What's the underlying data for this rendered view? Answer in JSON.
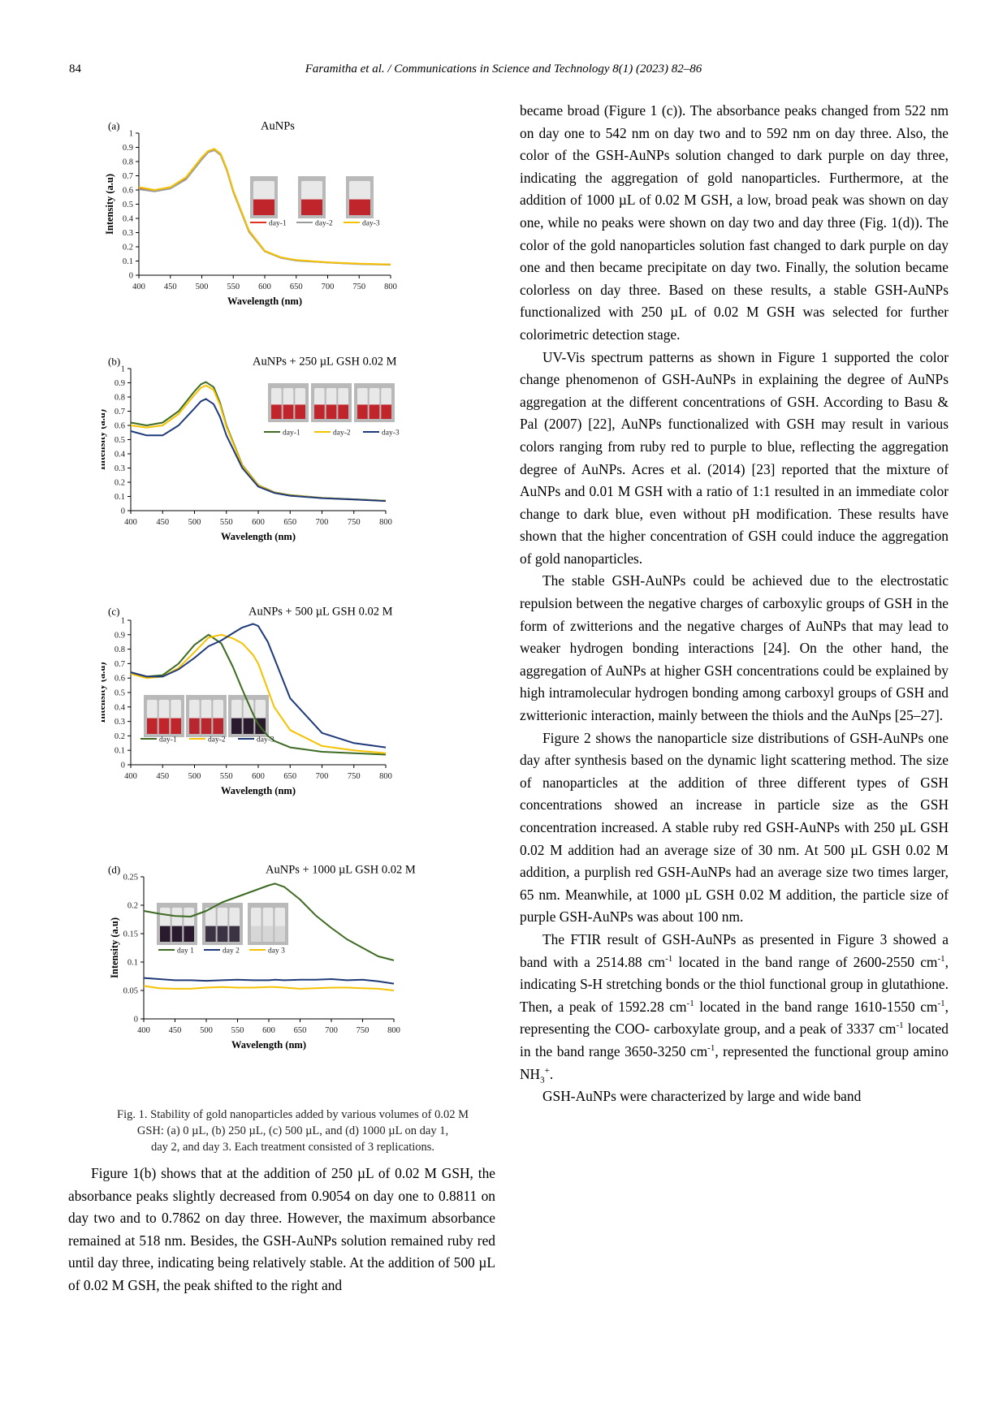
{
  "header": {
    "page_number": "84",
    "running_title": "Faramitha et al. / Communications in Science and Technology 8(1) (2023) 82–86"
  },
  "figure": {
    "caption_lines": [
      "Fig. 1. Stability of gold nanoparticles added by various volumes of 0.02 M",
      "GSH: (a) 0 µL, (b) 250 µL, (c) 500 µL, and (d) 1000 µL on day 1,",
      "day 2, and day 3. Each treatment consisted of 3 replications."
    ]
  },
  "chart_data": [
    {
      "type": "line",
      "panel_label": "(a)",
      "title": "AuNPs",
      "xlabel": "Wavelength (nm)",
      "ylabel": "Intensity (a.u)",
      "xlim": [
        400,
        800
      ],
      "ylim": [
        0,
        1
      ],
      "x_ticks": [
        "400",
        "450",
        "500",
        "550",
        "600",
        "650",
        "700",
        "750",
        "800"
      ],
      "y_ticks": [
        "0",
        "0.1",
        "0.2",
        "0.3",
        "0.4",
        "0.5",
        "0.6",
        "0.7",
        "0.8",
        "0.9",
        "1"
      ],
      "x": [
        400,
        425,
        450,
        475,
        500,
        510,
        520,
        530,
        540,
        550,
        575,
        600,
        625,
        650,
        700,
        750,
        800
      ],
      "series": [
        {
          "name": "day-1",
          "color": "#e0301e",
          "values": [
            0.61,
            0.595,
            0.615,
            0.68,
            0.82,
            0.87,
            0.885,
            0.85,
            0.74,
            0.59,
            0.31,
            0.17,
            0.125,
            0.105,
            0.09,
            0.08,
            0.075
          ]
        },
        {
          "name": "day-2",
          "color": "#9a9a9a",
          "values": [
            0.605,
            0.59,
            0.61,
            0.675,
            0.815,
            0.865,
            0.88,
            0.845,
            0.735,
            0.585,
            0.305,
            0.168,
            0.123,
            0.103,
            0.089,
            0.079,
            0.074
          ]
        },
        {
          "name": "day-3",
          "color": "#f5c100",
          "values": [
            0.62,
            0.6,
            0.62,
            0.69,
            0.83,
            0.875,
            0.89,
            0.855,
            0.745,
            0.595,
            0.315,
            0.172,
            0.127,
            0.107,
            0.091,
            0.081,
            0.076
          ]
        }
      ],
      "inset_vial_sets": 3
    },
    {
      "type": "line",
      "panel_label": "(b)",
      "title": "AuNPs + 250 µL GSH 0.02 M",
      "xlabel": "Wavelength (nm)",
      "ylabel": "Intensity (a.u)",
      "xlim": [
        400,
        800
      ],
      "ylim": [
        0,
        1
      ],
      "x_ticks": [
        "400",
        "450",
        "500",
        "550",
        "600",
        "650",
        "700",
        "750",
        "800"
      ],
      "y_ticks": [
        "0",
        "0.1",
        "0.2",
        "0.3",
        "0.4",
        "0.5",
        "0.6",
        "0.7",
        "0.8",
        "0.9",
        "1"
      ],
      "x": [
        400,
        425,
        450,
        475,
        500,
        510,
        518,
        530,
        540,
        550,
        575,
        600,
        625,
        650,
        700,
        750,
        800
      ],
      "series": [
        {
          "name": "day-1",
          "color": "#3d6b22",
          "values": [
            0.62,
            0.6,
            0.62,
            0.7,
            0.84,
            0.89,
            0.9054,
            0.87,
            0.76,
            0.6,
            0.32,
            0.18,
            0.13,
            0.11,
            0.09,
            0.08,
            0.07
          ]
        },
        {
          "name": "day-2",
          "color": "#f5c100",
          "values": [
            0.6,
            0.585,
            0.6,
            0.68,
            0.815,
            0.865,
            0.8811,
            0.85,
            0.745,
            0.59,
            0.315,
            0.178,
            0.128,
            0.108,
            0.089,
            0.079,
            0.069
          ]
        },
        {
          "name": "day-3",
          "color": "#1f3a7a",
          "values": [
            0.56,
            0.53,
            0.53,
            0.6,
            0.72,
            0.77,
            0.7862,
            0.75,
            0.66,
            0.53,
            0.3,
            0.17,
            0.125,
            0.105,
            0.088,
            0.078,
            0.068
          ]
        }
      ],
      "inset_vial_sets": 3
    },
    {
      "type": "line",
      "panel_label": "(c)",
      "title": "AuNPs + 500 µL GSH 0.02 M",
      "xlabel": "Wavelength (nm)",
      "ylabel": "Intensity (a.u)",
      "xlim": [
        400,
        800
      ],
      "ylim": [
        0,
        1
      ],
      "x_ticks": [
        "400",
        "450",
        "500",
        "550",
        "600",
        "650",
        "700",
        "750",
        "800"
      ],
      "y_ticks": [
        "0",
        "0.1",
        "0.2",
        "0.3",
        "0.4",
        "0.5",
        "0.6",
        "0.7",
        "0.8",
        "0.9",
        "1"
      ],
      "x": [
        400,
        425,
        450,
        475,
        500,
        522,
        542,
        560,
        575,
        592,
        600,
        615,
        625,
        650,
        700,
        750,
        800
      ],
      "series": [
        {
          "name": "day-1",
          "color": "#3d6b22",
          "values": [
            0.64,
            0.61,
            0.62,
            0.7,
            0.83,
            0.9,
            0.84,
            0.68,
            0.52,
            0.35,
            0.28,
            0.2,
            0.165,
            0.12,
            0.09,
            0.08,
            0.07
          ]
        },
        {
          "name": "day-2",
          "color": "#f5c100",
          "values": [
            0.63,
            0.6,
            0.61,
            0.67,
            0.78,
            0.88,
            0.9,
            0.875,
            0.84,
            0.76,
            0.7,
            0.52,
            0.4,
            0.24,
            0.13,
            0.1,
            0.08
          ]
        },
        {
          "name": "day-3",
          "color": "#1f3a7a",
          "values": [
            0.64,
            0.61,
            0.61,
            0.66,
            0.74,
            0.82,
            0.86,
            0.91,
            0.95,
            0.975,
            0.96,
            0.85,
            0.74,
            0.46,
            0.22,
            0.15,
            0.12
          ]
        }
      ],
      "inset_vial_sets": 3
    },
    {
      "type": "line",
      "panel_label": "(d)",
      "title": "AuNPs + 1000 µL GSH 0.02 M",
      "xlabel": "Wavelength (nm)",
      "ylabel": "Intensity (a.u)",
      "xlim": [
        400,
        800
      ],
      "ylim": [
        0,
        0.25
      ],
      "x_ticks": [
        "400",
        "450",
        "500",
        "550",
        "600",
        "650",
        "700",
        "750",
        "800"
      ],
      "y_ticks": [
        "0",
        "0.05",
        "0.1",
        "0.15",
        "0.2",
        "0.25"
      ],
      "x": [
        400,
        425,
        450,
        475,
        500,
        525,
        550,
        575,
        600,
        610,
        625,
        650,
        675,
        700,
        725,
        750,
        775,
        800
      ],
      "series": [
        {
          "name": "day 1",
          "color": "#3d6b22",
          "values": [
            0.19,
            0.185,
            0.181,
            0.18,
            0.19,
            0.205,
            0.215,
            0.225,
            0.235,
            0.238,
            0.232,
            0.21,
            0.182,
            0.16,
            0.14,
            0.125,
            0.11,
            0.103
          ]
        },
        {
          "name": "day 2",
          "color": "#1f3a7a",
          "values": [
            0.072,
            0.07,
            0.068,
            0.068,
            0.067,
            0.068,
            0.069,
            0.068,
            0.068,
            0.069,
            0.068,
            0.069,
            0.069,
            0.07,
            0.068,
            0.069,
            0.066,
            0.062
          ]
        },
        {
          "name": "day 3",
          "color": "#f5c100",
          "values": [
            0.058,
            0.054,
            0.053,
            0.053,
            0.055,
            0.056,
            0.055,
            0.055,
            0.056,
            0.056,
            0.055,
            0.053,
            0.054,
            0.055,
            0.055,
            0.054,
            0.053,
            0.05
          ]
        }
      ],
      "inset_vial_sets": 3
    }
  ],
  "left_column": {
    "paragraphs": [
      {
        "parts": [
          {
            "t": "Figure 1(b) shows that at the addition of 250 µL of 0.02 M GSH, the absorbance peaks slightly decreased from 0.9054 on day one to 0.8811 on day two and to 0.7862 on day three. However, the maximum absorbance remained at 518 nm. Besides, the GSH-AuNPs solution remained ruby red until day three, indicating being relatively stable. At the addition of 500 µL of 0.02 M GSH, the peak shifted to the right and"
          }
        ]
      }
    ]
  },
  "right_column": {
    "paragraphs": [
      {
        "indent": false,
        "parts": [
          {
            "t": "became broad (Figure 1 (c)). The absorbance peaks changed from 522 nm on day one to 542 nm on day two and to 592 nm on day three. Also, the color of the GSH-AuNPs solution changed to dark purple on day three, indicating the aggregation of gold nanoparticles. Furthermore, at the addition of 1000 µL of 0.02 M GSH, a low, broad peak was shown on day one, while no peaks were shown on day two and day three (Fig. 1(d)). The color of the gold nanoparticles solution fast changed to dark purple on day one and then became precipitate on day two.  Finally, the solution became colorless on day three. Based on these results, a stable GSH-AuNPs functionalized with 250 µL of 0.02 M GSH was selected for further colorimetric detection stage."
          }
        ]
      },
      {
        "indent": true,
        "parts": [
          {
            "t": "UV-Vis spectrum patterns as shown in Figure 1 supported the color change phenomenon of GSH-AuNPs in explaining the degree of AuNPs aggregation at the different concentrations of GSH. According to Basu & Pal (2007) [22], AuNPs functionalized with GSH may result in various colors ranging from ruby red to purple to blue, reflecting the aggregation degree of AuNPs. Acres et al. (2014) [23] reported that the mixture of AuNPs and 0.01 M GSH with a ratio of 1:1 resulted in an immediate color change to dark blue, even without pH modification. These results have shown that the higher concentration of GSH could induce the aggregation of gold nanoparticles."
          }
        ]
      },
      {
        "indent": true,
        "parts": [
          {
            "t": "The stable GSH-AuNPs could be achieved due to the electrostatic repulsion between the negative charges of carboxylic groups of GSH in the form of zwitterions and the negative charges of  AuNPs that may lead to weaker hydrogen bonding interactions [24]. On the other hand, the aggregation of AuNPs at higher GSH concentrations could be explained by high intramolecular hydrogen bonding among carboxyl groups of GSH and zwitterionic interaction, mainly between the thiols and the AuNps [25–27]."
          }
        ]
      },
      {
        "indent": true,
        "parts": [
          {
            "t": "Figure 2 shows the nanoparticle size distributions of GSH-AuNPs one day after synthesis based on the dynamic light scattering method. The size of nanoparticles at the addition of three different types of GSH concentrations showed an increase in particle size as the GSH concentration increased. A stable ruby red GSH-AuNPs with 250 µL GSH 0.02 M addition had an average size of 30 nm. At 500 µL GSH 0.02 M addition, a purplish red GSH-AuNPs had an average size two times larger, 65 nm. Meanwhile, at 1000 µL GSH 0.02 M addition, the particle size of purple GSH-AuNPs was about 100 nm."
          }
        ]
      },
      {
        "indent": true,
        "parts": [
          {
            "t": "The FTIR result of GSH-AuNPs as presented in Figure 3 showed a band with a 2514.88 cm"
          },
          {
            "t": "-1",
            "sup": true
          },
          {
            "t": " located in the band range of 2600-2550 cm"
          },
          {
            "t": "-1",
            "sup": true
          },
          {
            "t": ", indicating S-H stretching bonds or the thiol functional group in glutathione. Then, a peak of 1592.28 cm"
          },
          {
            "t": "-1",
            "sup": true
          },
          {
            "t": " located in the band range 1610-1550 cm"
          },
          {
            "t": "-1",
            "sup": true
          },
          {
            "t": ", representing the COO- carboxylate group, and a peak of 3337 cm"
          },
          {
            "t": "-1",
            "sup": true
          },
          {
            "t": " located in the band range 3650-3250 cm"
          },
          {
            "t": "-1",
            "sup": true
          },
          {
            "t": ", represented the functional group amino NH"
          },
          {
            "t": "3",
            "sub": true
          },
          {
            "t": "+",
            "sup": true
          },
          {
            "t": "."
          }
        ]
      },
      {
        "indent": true,
        "parts": [
          {
            "t": "GSH-AuNPs were characterized by large and wide band"
          }
        ]
      }
    ]
  },
  "colors": {
    "ruby_red": "#c0252c",
    "dark_purple": "#2a1a2e",
    "axis": "#000000"
  }
}
